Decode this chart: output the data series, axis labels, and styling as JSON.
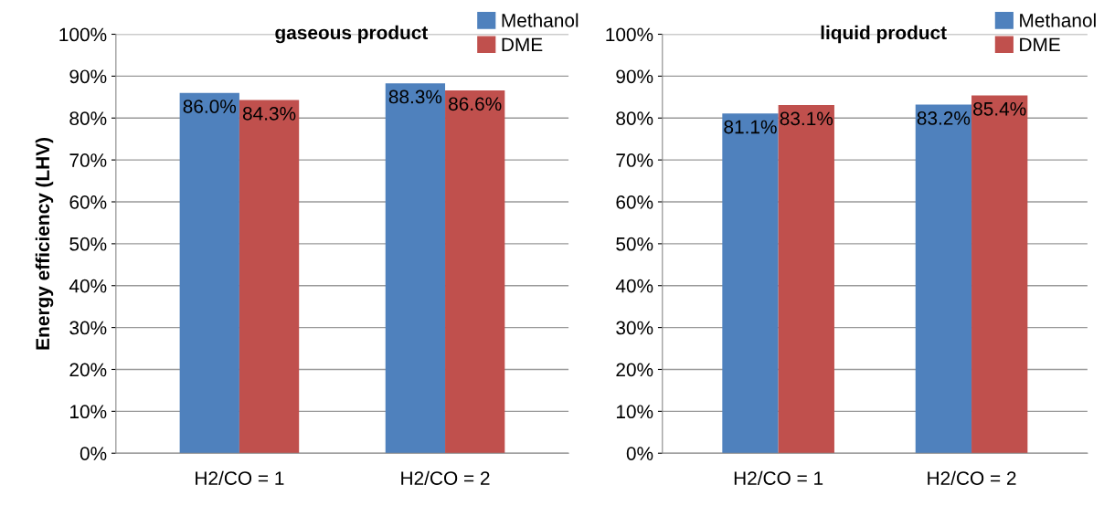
{
  "chart_data": [
    {
      "type": "bar",
      "title": "gaseous product",
      "ylabel": "Energy efficiency (LHV)",
      "categories": [
        "H2/CO = 1",
        "H2/CO = 2"
      ],
      "series": [
        {
          "name": "Methanol",
          "color": "#4f81bd",
          "values": [
            86.0,
            88.3
          ],
          "value_labels": [
            "86.0%",
            "88.3%"
          ]
        },
        {
          "name": "DME",
          "color": "#c0504d",
          "values": [
            84.3,
            86.6
          ],
          "value_labels": [
            "84.3%",
            "86.6%"
          ]
        }
      ],
      "ylim": [
        0,
        100
      ],
      "yticks": [
        {
          "value": 0,
          "label": "0%"
        },
        {
          "value": 10,
          "label": "10%"
        },
        {
          "value": 20,
          "label": "20%"
        },
        {
          "value": 30,
          "label": "30%"
        },
        {
          "value": 40,
          "label": "40%"
        },
        {
          "value": 50,
          "label": "50%"
        },
        {
          "value": 60,
          "label": "60%"
        },
        {
          "value": 70,
          "label": "70%"
        },
        {
          "value": 80,
          "label": "80%"
        },
        {
          "value": 90,
          "label": "90%"
        },
        {
          "value": 100,
          "label": "100%"
        }
      ],
      "grid": "y",
      "legend": "top right"
    },
    {
      "type": "bar",
      "title": "liquid product",
      "categories": [
        "H2/CO = 1",
        "H2/CO = 2"
      ],
      "series": [
        {
          "name": "Methanol",
          "color": "#4f81bd",
          "values": [
            81.1,
            83.2
          ],
          "value_labels": [
            "81.1%",
            "83.2%"
          ]
        },
        {
          "name": "DME",
          "color": "#c0504d",
          "values": [
            83.1,
            85.4
          ],
          "value_labels": [
            "83.1%",
            "85.4%"
          ]
        }
      ],
      "ylim": [
        0,
        100
      ],
      "yticks": [
        {
          "value": 0,
          "label": "0%"
        },
        {
          "value": 10,
          "label": "10%"
        },
        {
          "value": 20,
          "label": "20%"
        },
        {
          "value": 30,
          "label": "30%"
        },
        {
          "value": 40,
          "label": "40%"
        },
        {
          "value": 50,
          "label": "50%"
        },
        {
          "value": 60,
          "label": "60%"
        },
        {
          "value": 70,
          "label": "70%"
        },
        {
          "value": 80,
          "label": "80%"
        },
        {
          "value": 90,
          "label": "90%"
        },
        {
          "value": 100,
          "label": "100%"
        }
      ],
      "grid": "y",
      "legend": "top right"
    }
  ]
}
